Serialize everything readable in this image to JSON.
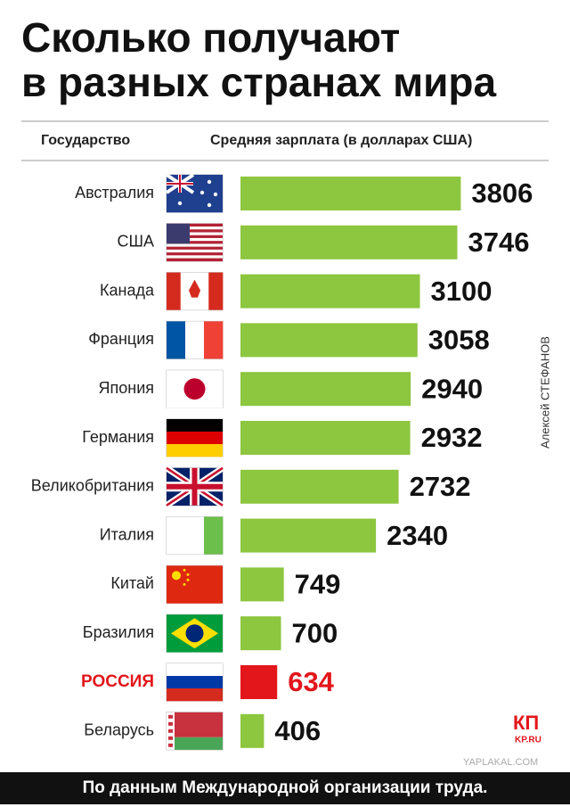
{
  "chart_data": {
    "type": "bar",
    "orientation": "horizontal",
    "title": [
      "Сколько получают",
      "в разных странах мира"
    ],
    "category_header": "Государство",
    "value_header": "Средняя зарплата (в долларах США)",
    "categories": [
      "Австралия",
      "США",
      "Канада",
      "Франция",
      "Япония",
      "Германия",
      "Великобритания",
      "Италия",
      "Китай",
      "Бразилия",
      "РОССИЯ",
      "Беларусь"
    ],
    "values": [
      3806,
      3746,
      3100,
      3058,
      2940,
      2932,
      2732,
      2340,
      749,
      700,
      634,
      406
    ],
    "color": "#8dc63f",
    "colors": [
      "#8dc63f",
      "#8dc63f",
      "#8dc63f",
      "#8dc63f",
      "#8dc63f",
      "#8dc63f",
      "#8dc63f",
      "#8dc63f",
      "#8dc63f",
      "#8dc63f",
      "#e3161b",
      "#8dc63f"
    ],
    "author": "Алексей СТЕФАНОВ",
    "source": "По данным Международной организации труда.",
    "logo": "КП",
    "logo_sub": "KP.RU",
    "watermark": "YAPLAKAL.COM"
  }
}
